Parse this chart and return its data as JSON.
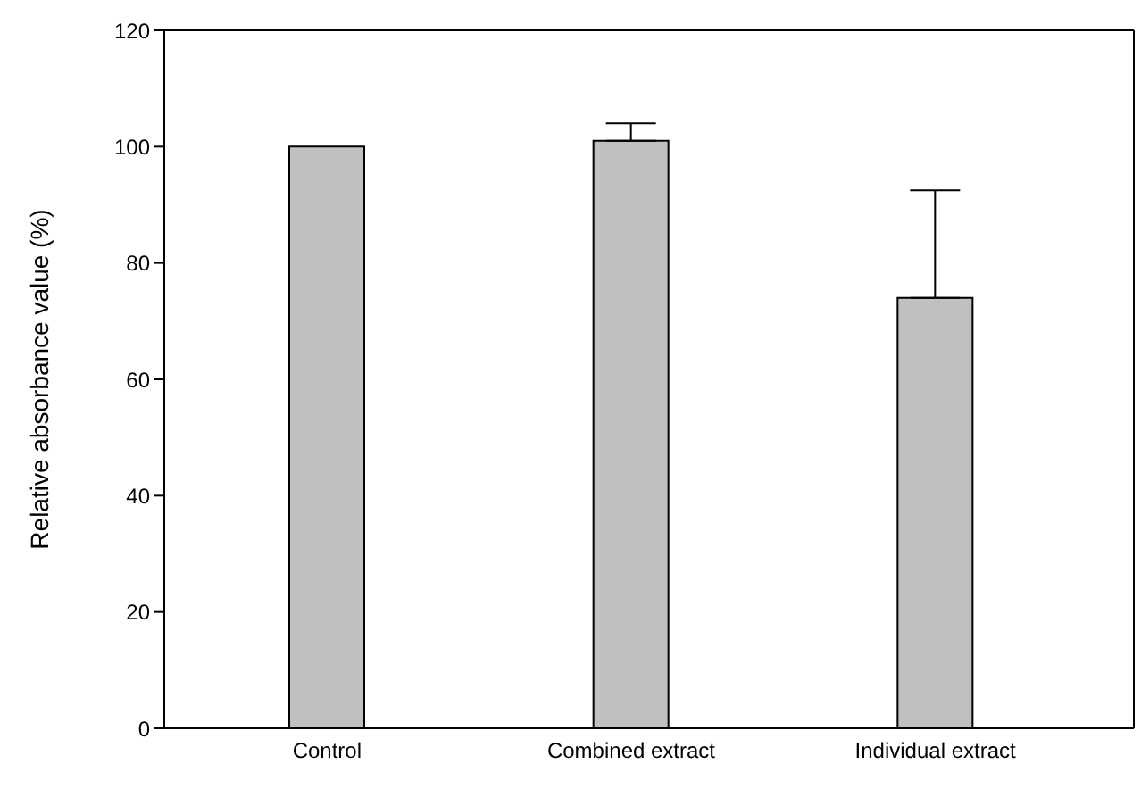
{
  "chart_data": {
    "type": "bar",
    "categories": [
      "Control",
      "Combined extract",
      "Individual extract"
    ],
    "values": [
      100,
      101,
      74
    ],
    "errors": [
      null,
      [
        101,
        104
      ],
      [
        74,
        92.5
      ]
    ],
    "color": "#c0c0c0",
    "ylabel": "Relative absorbance value (%)",
    "ylim": [
      0,
      120
    ],
    "yticks": [
      0,
      20,
      40,
      60,
      80,
      100,
      120
    ],
    "grid": false,
    "legend": false
  }
}
